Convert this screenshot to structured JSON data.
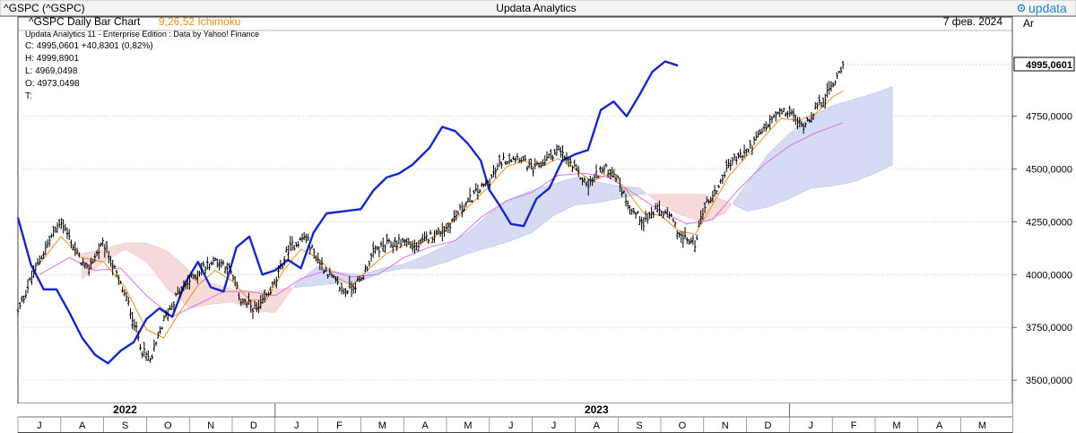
{
  "window": {
    "title": "Updata Analytics",
    "brand": "updata",
    "symbol_label": "^GSPC (^GSPC)"
  },
  "chart_header": {
    "title": "^GSPC Daily Bar Chart",
    "indicator": "9,26,52 Ichimoku",
    "indicator_color": "#f08c1e",
    "date": "7 фев. 2024",
    "axis_label": "Ar",
    "subtitle": "Updata Analytics 11 - Enterprise Edition : Data by Yahoo! Finance"
  },
  "quote": {
    "close": "C: 4995,0601  +40,8301 (0,82%)",
    "high": "H: 4999,8901",
    "low": "L: 4969,0498",
    "open": "O: 4973,0498",
    "time": "T:"
  },
  "last_price_label": "4995,0601",
  "colors": {
    "price_bars": "#000000",
    "lagging_span": "#1428c8",
    "tenkan": "#f08c1e",
    "kijun": "#e070e0",
    "cloud_bull": "#d4daf4",
    "cloud_bear": "#f6d8d8",
    "grid": "#bbbbbb"
  },
  "chart_data": {
    "type": "line",
    "title": "^GSPC Daily Bar Chart",
    "y_axis_ticks": [
      {
        "value": 3500,
        "label": "3500,0000"
      },
      {
        "value": 3750,
        "label": "3750,0000"
      },
      {
        "value": 4000,
        "label": "4000,0000"
      },
      {
        "value": 4250,
        "label": "4250,0000"
      },
      {
        "value": 4500,
        "label": "4500,0000"
      },
      {
        "value": 4750,
        "label": "4750,0000"
      }
    ],
    "ylim": [
      3390,
      5220
    ],
    "year_labels": [
      {
        "label": "2022",
        "month_index": 2
      },
      {
        "label": "2023",
        "month_index": 13
      }
    ],
    "month_labels": [
      "J",
      "A",
      "S",
      "O",
      "N",
      "D",
      "J",
      "F",
      "M",
      "A",
      "M",
      "J",
      "J",
      "A",
      "S",
      "O",
      "N",
      "D",
      "J",
      "F",
      "M",
      "A",
      "M"
    ],
    "price_knots": [
      [
        0,
        3820
      ],
      [
        0.3,
        3980
      ],
      [
        0.7,
        4150
      ],
      [
        1.0,
        4260
      ],
      [
        1.3,
        4130
      ],
      [
        1.6,
        4020
      ],
      [
        2.0,
        4150
      ],
      [
        2.3,
        4000
      ],
      [
        2.6,
        3850
      ],
      [
        2.9,
        3640
      ],
      [
        3.1,
        3590
      ],
      [
        3.4,
        3780
      ],
      [
        3.7,
        3900
      ],
      [
        4.0,
        3970
      ],
      [
        4.3,
        4030
      ],
      [
        4.6,
        4070
      ],
      [
        4.9,
        4040
      ],
      [
        5.2,
        3880
      ],
      [
        5.6,
        3830
      ],
      [
        6.0,
        3960
      ],
      [
        6.3,
        4120
      ],
      [
        6.7,
        4180
      ],
      [
        7.0,
        4070
      ],
      [
        7.3,
        3990
      ],
      [
        7.6,
        3920
      ],
      [
        8.0,
        3970
      ],
      [
        8.3,
        4110
      ],
      [
        8.6,
        4140
      ],
      [
        9.0,
        4160
      ],
      [
        9.3,
        4130
      ],
      [
        9.6,
        4180
      ],
      [
        10.0,
        4220
      ],
      [
        10.3,
        4300
      ],
      [
        10.7,
        4390
      ],
      [
        11.0,
        4440
      ],
      [
        11.3,
        4540
      ],
      [
        11.7,
        4560
      ],
      [
        12.0,
        4490
      ],
      [
        12.3,
        4540
      ],
      [
        12.6,
        4590
      ],
      [
        12.9,
        4520
      ],
      [
        13.3,
        4420
      ],
      [
        13.6,
        4500
      ],
      [
        13.9,
        4490
      ],
      [
        14.1,
        4400
      ],
      [
        14.3,
        4310
      ],
      [
        14.6,
        4250
      ],
      [
        14.9,
        4310
      ],
      [
        15.2,
        4280
      ],
      [
        15.5,
        4170
      ],
      [
        15.8,
        4150
      ],
      [
        16.0,
        4320
      ],
      [
        16.3,
        4400
      ],
      [
        16.6,
        4530
      ],
      [
        17.0,
        4580
      ],
      [
        17.3,
        4660
      ],
      [
        17.7,
        4760
      ],
      [
        18.0,
        4770
      ],
      [
        18.3,
        4700
      ],
      [
        18.6,
        4780
      ],
      [
        18.9,
        4860
      ],
      [
        19.25,
        4995
      ]
    ],
    "lagging_knots": [
      [
        0,
        4270
      ],
      [
        0.3,
        4050
      ],
      [
        0.6,
        3930
      ],
      [
        0.9,
        3930
      ],
      [
        1.2,
        3820
      ],
      [
        1.5,
        3700
      ],
      [
        1.8,
        3620
      ],
      [
        2.1,
        3580
      ],
      [
        2.4,
        3640
      ],
      [
        2.7,
        3680
      ],
      [
        3.0,
        3790
      ],
      [
        3.3,
        3840
      ],
      [
        3.6,
        3800
      ],
      [
        3.9,
        3960
      ],
      [
        4.2,
        4060
      ],
      [
        4.5,
        3940
      ],
      [
        4.8,
        3920
      ],
      [
        5.1,
        4130
      ],
      [
        5.4,
        4180
      ],
      [
        5.7,
        4000
      ],
      [
        6.0,
        4020
      ],
      [
        6.3,
        4070
      ],
      [
        6.6,
        4030
      ],
      [
        6.9,
        4200
      ],
      [
        7.2,
        4290
      ],
      [
        7.6,
        4300
      ],
      [
        8.0,
        4310
      ],
      [
        8.3,
        4400
      ],
      [
        8.6,
        4460
      ],
      [
        8.9,
        4480
      ],
      [
        9.2,
        4520
      ],
      [
        9.6,
        4600
      ],
      [
        9.9,
        4700
      ],
      [
        10.2,
        4680
      ],
      [
        10.5,
        4620
      ],
      [
        10.8,
        4540
      ],
      [
        11.0,
        4400
      ],
      [
        11.2,
        4340
      ],
      [
        11.5,
        4240
      ],
      [
        11.8,
        4230
      ],
      [
        12.1,
        4360
      ],
      [
        12.4,
        4410
      ],
      [
        12.7,
        4540
      ],
      [
        13.0,
        4570
      ],
      [
        13.3,
        4590
      ],
      [
        13.6,
        4780
      ],
      [
        13.9,
        4820
      ],
      [
        14.2,
        4750
      ],
      [
        14.5,
        4850
      ],
      [
        14.8,
        4960
      ],
      [
        15.1,
        5010
      ],
      [
        15.4,
        4990
      ]
    ],
    "tenkan_knots": [
      [
        0.5,
        4050
      ],
      [
        1.0,
        4180
      ],
      [
        1.5,
        4080
      ],
      [
        2.0,
        4060
      ],
      [
        2.5,
        3940
      ],
      [
        3.0,
        3740
      ],
      [
        3.4,
        3700
      ],
      [
        3.8,
        3830
      ],
      [
        4.2,
        3950
      ],
      [
        4.6,
        4020
      ],
      [
        5.0,
        3970
      ],
      [
        5.4,
        3880
      ],
      [
        5.8,
        3880
      ],
      [
        6.2,
        4020
      ],
      [
        6.6,
        4120
      ],
      [
        7.0,
        4080
      ],
      [
        7.4,
        3990
      ],
      [
        7.8,
        3950
      ],
      [
        8.2,
        4030
      ],
      [
        8.6,
        4100
      ],
      [
        9.0,
        4140
      ],
      [
        9.4,
        4150
      ],
      [
        9.8,
        4190
      ],
      [
        10.2,
        4260
      ],
      [
        10.6,
        4340
      ],
      [
        11.0,
        4420
      ],
      [
        11.4,
        4510
      ],
      [
        11.8,
        4540
      ],
      [
        12.2,
        4510
      ],
      [
        12.6,
        4550
      ],
      [
        13.0,
        4500
      ],
      [
        13.4,
        4440
      ],
      [
        13.8,
        4480
      ],
      [
        14.2,
        4400
      ],
      [
        14.6,
        4290
      ],
      [
        15.0,
        4280
      ],
      [
        15.4,
        4210
      ],
      [
        15.8,
        4190
      ],
      [
        16.2,
        4330
      ],
      [
        16.6,
        4470
      ],
      [
        17.0,
        4560
      ],
      [
        17.4,
        4650
      ],
      [
        17.8,
        4740
      ],
      [
        18.2,
        4730
      ],
      [
        18.6,
        4760
      ],
      [
        19.0,
        4840
      ],
      [
        19.25,
        4870
      ]
    ],
    "kijun_knots": [
      [
        0.5,
        4000
      ],
      [
        1.2,
        4080
      ],
      [
        1.8,
        4020
      ],
      [
        2.4,
        4030
      ],
      [
        3.0,
        3900
      ],
      [
        3.6,
        3800
      ],
      [
        4.2,
        3860
      ],
      [
        4.8,
        3920
      ],
      [
        5.4,
        3920
      ],
      [
        6.0,
        3900
      ],
      [
        6.6,
        3980
      ],
      [
        7.2,
        4020
      ],
      [
        7.8,
        3990
      ],
      [
        8.4,
        4000
      ],
      [
        9.0,
        4080
      ],
      [
        9.6,
        4130
      ],
      [
        10.2,
        4160
      ],
      [
        10.8,
        4270
      ],
      [
        11.4,
        4350
      ],
      [
        12.0,
        4390
      ],
      [
        12.6,
        4470
      ],
      [
        13.2,
        4480
      ],
      [
        13.8,
        4460
      ],
      [
        14.4,
        4380
      ],
      [
        15.0,
        4300
      ],
      [
        15.6,
        4240
      ],
      [
        16.2,
        4260
      ],
      [
        16.8,
        4400
      ],
      [
        17.4,
        4520
      ],
      [
        18.0,
        4610
      ],
      [
        18.6,
        4670
      ],
      [
        19.25,
        4720
      ]
    ],
    "senkou_a_knots": [
      [
        1.5,
        3980
      ],
      [
        2.0,
        4060
      ],
      [
        2.5,
        4120
      ],
      [
        3.0,
        4060
      ],
      [
        3.5,
        3930
      ],
      [
        4.0,
        3840
      ],
      [
        4.5,
        3860
      ],
      [
        5.0,
        3870
      ],
      [
        5.5,
        3830
      ],
      [
        6.0,
        3820
      ],
      [
        6.5,
        3960
      ],
      [
        7.0,
        4040
      ],
      [
        7.5,
        4010
      ],
      [
        8.0,
        4000
      ],
      [
        8.5,
        4030
      ],
      [
        9.0,
        4050
      ],
      [
        9.5,
        4090
      ],
      [
        10.0,
        4140
      ],
      [
        10.5,
        4200
      ],
      [
        11.0,
        4290
      ],
      [
        11.5,
        4360
      ],
      [
        12.0,
        4400
      ],
      [
        12.5,
        4430
      ],
      [
        13.0,
        4460
      ],
      [
        13.5,
        4440
      ],
      [
        14.0,
        4420
      ],
      [
        14.5,
        4410
      ],
      [
        15.0,
        4330
      ],
      [
        15.5,
        4280
      ],
      [
        16.0,
        4250
      ],
      [
        16.5,
        4290
      ],
      [
        17.0,
        4430
      ],
      [
        17.5,
        4570
      ],
      [
        18.0,
        4670
      ],
      [
        18.5,
        4750
      ],
      [
        19.0,
        4800
      ],
      [
        19.5,
        4830
      ],
      [
        20.0,
        4860
      ],
      [
        20.4,
        4890
      ]
    ],
    "senkou_b_knots": [
      [
        1.5,
        4100
      ],
      [
        2.0,
        4120
      ],
      [
        2.5,
        4150
      ],
      [
        3.0,
        4150
      ],
      [
        3.5,
        4110
      ],
      [
        4.0,
        4020
      ],
      [
        4.5,
        3960
      ],
      [
        5.0,
        3930
      ],
      [
        5.5,
        3920
      ],
      [
        6.0,
        3930
      ],
      [
        6.5,
        3940
      ],
      [
        7.0,
        3950
      ],
      [
        7.5,
        3960
      ],
      [
        8.0,
        3970
      ],
      [
        8.5,
        4010
      ],
      [
        9.0,
        4030
      ],
      [
        9.5,
        4030
      ],
      [
        10.0,
        4060
      ],
      [
        10.5,
        4100
      ],
      [
        11.0,
        4130
      ],
      [
        11.5,
        4160
      ],
      [
        12.0,
        4200
      ],
      [
        12.5,
        4280
      ],
      [
        13.0,
        4330
      ],
      [
        13.5,
        4340
      ],
      [
        14.0,
        4360
      ],
      [
        14.5,
        4380
      ],
      [
        15.0,
        4380
      ],
      [
        15.5,
        4380
      ],
      [
        16.0,
        4380
      ],
      [
        16.5,
        4350
      ],
      [
        17.0,
        4300
      ],
      [
        17.5,
        4320
      ],
      [
        18.0,
        4360
      ],
      [
        18.5,
        4410
      ],
      [
        19.0,
        4420
      ],
      [
        19.5,
        4440
      ],
      [
        20.0,
        4480
      ],
      [
        20.4,
        4520
      ]
    ]
  }
}
